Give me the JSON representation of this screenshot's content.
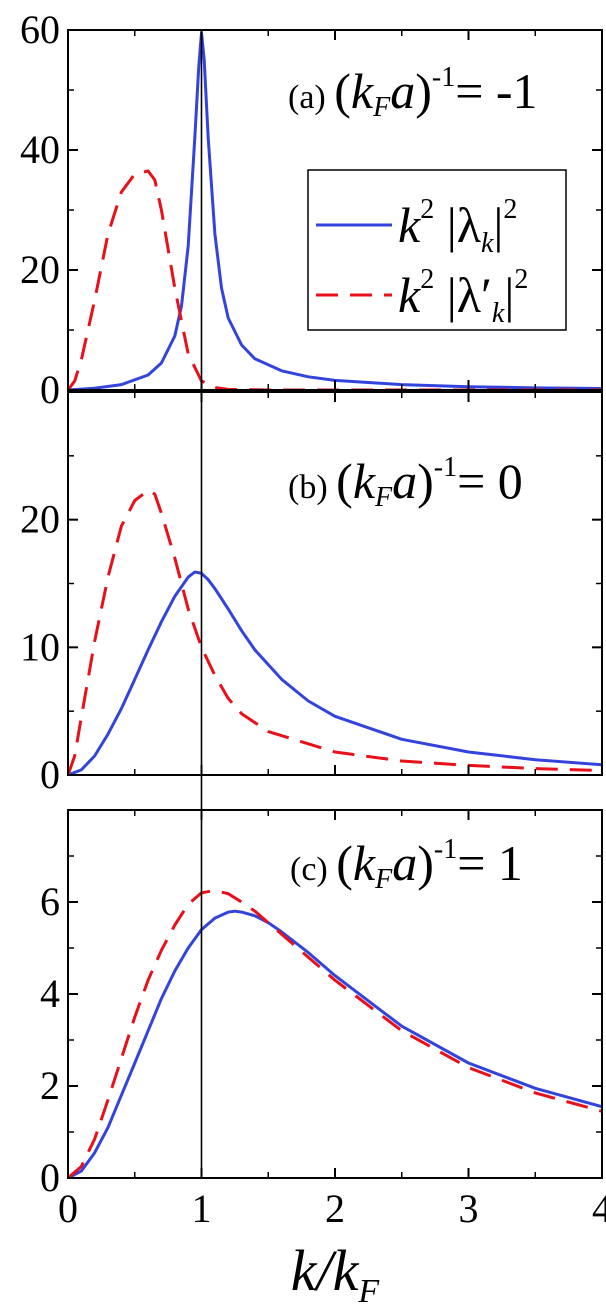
{
  "chart_data": {
    "type": "line",
    "shared_x": {
      "label": "k/k_F",
      "range": [
        0,
        4
      ],
      "ticks": [
        "0",
        "1",
        "2",
        "3",
        "4"
      ]
    },
    "reference_line_x": 1,
    "legend": {
      "placement": "top-right of panel (a)",
      "entries": [
        {
          "series": "k2_lambda",
          "base": "k",
          "sup": "2",
          "body": "|λ",
          "sub": "k",
          "tail": "|",
          "tail_sup": "2"
        },
        {
          "series": "k2_lambda_prime",
          "base": "k",
          "sup": "2",
          "body": "|λ′",
          "sub": "k",
          "tail": "|",
          "tail_sup": "2"
        }
      ]
    },
    "series_styles": {
      "k2_lambda": {
        "color": "#3344dd",
        "dash": "solid"
      },
      "k2_lambda_prime": {
        "color": "#e8101a",
        "dash": "dashed"
      }
    },
    "panels": [
      {
        "id": "a",
        "label_prefix": "(a)",
        "label_value": "-1",
        "ylim": [
          0,
          60
        ],
        "yticks": [
          "0",
          "20",
          "40",
          "60"
        ],
        "series": [
          {
            "key": "k2_lambda",
            "x": [
              0,
              0.2,
              0.4,
              0.6,
              0.7,
              0.8,
              0.85,
              0.9,
              0.95,
              0.98,
              1.0,
              1.02,
              1.05,
              1.1,
              1.15,
              1.2,
              1.3,
              1.4,
              1.6,
              1.8,
              2.0,
              2.5,
              3.0,
              3.5,
              4.0
            ],
            "y": [
              0,
              0.3,
              0.9,
              2.5,
              4.5,
              9,
              14,
              24,
              42,
              54,
              59.5,
              55,
              42,
              26,
              17,
              12,
              7.5,
              5.2,
              3.2,
              2.2,
              1.6,
              0.9,
              0.55,
              0.35,
              0.25
            ]
          },
          {
            "key": "k2_lambda_prime",
            "x": [
              0,
              0.05,
              0.1,
              0.2,
              0.3,
              0.4,
              0.5,
              0.6,
              0.65,
              0.7,
              0.8,
              0.9,
              1.0,
              1.1,
              1.2,
              1.5,
              2.0,
              3.0,
              4.0
            ],
            "y": [
              0,
              1.5,
              5,
              15,
              26,
              33,
              36,
              36.5,
              35,
              30,
              17,
              6,
              1.5,
              0.4,
              0.1,
              0,
              0,
              0,
              0
            ]
          }
        ]
      },
      {
        "id": "b",
        "label_prefix": "(b)",
        "label_value": "0",
        "ylim": [
          0,
          30
        ],
        "yticks": [
          "0",
          "10",
          "20"
        ],
        "series": [
          {
            "key": "k2_lambda",
            "x": [
              0,
              0.1,
              0.2,
              0.3,
              0.4,
              0.5,
              0.6,
              0.7,
              0.8,
              0.9,
              0.95,
              1.0,
              1.05,
              1.1,
              1.2,
              1.3,
              1.4,
              1.6,
              1.8,
              2.0,
              2.5,
              3.0,
              3.5,
              4.0
            ],
            "y": [
              0,
              0.4,
              1.5,
              3.2,
              5.2,
              7.5,
              9.8,
              12,
              14,
              15.5,
              15.9,
              15.8,
              15.3,
              14.6,
              13,
              11.3,
              9.8,
              7.5,
              5.8,
              4.6,
              2.8,
              1.8,
              1.2,
              0.8
            ]
          },
          {
            "key": "k2_lambda_prime",
            "x": [
              0,
              0.05,
              0.1,
              0.2,
              0.3,
              0.4,
              0.5,
              0.6,
              0.65,
              0.7,
              0.8,
              0.9,
              1.0,
              1.1,
              1.2,
              1.3,
              1.5,
              2.0,
              2.5,
              3.0,
              3.5,
              4.0
            ],
            "y": [
              0,
              1.5,
              4.5,
              10.5,
              15.5,
              19.5,
              21.5,
              22.3,
              22,
              20.5,
              17,
              13,
              10,
              7.8,
              6,
              4.8,
              3.4,
              1.8,
              1.1,
              0.75,
              0.5,
              0.35
            ]
          }
        ]
      },
      {
        "id": "c",
        "label_prefix": "(c)",
        "label_value": "1",
        "ylim": [
          0,
          8
        ],
        "yticks": [
          "0",
          "2",
          "4",
          "6"
        ],
        "series": [
          {
            "key": "k2_lambda",
            "x": [
              0,
              0.1,
              0.2,
              0.3,
              0.4,
              0.5,
              0.6,
              0.7,
              0.8,
              0.9,
              1.0,
              1.1,
              1.2,
              1.25,
              1.3,
              1.4,
              1.5,
              1.6,
              1.8,
              2.0,
              2.5,
              3.0,
              3.5,
              4.0
            ],
            "y": [
              0,
              0.15,
              0.55,
              1.1,
              1.8,
              2.5,
              3.2,
              3.9,
              4.5,
              5.0,
              5.4,
              5.65,
              5.78,
              5.8,
              5.78,
              5.7,
              5.55,
              5.35,
              4.9,
              4.4,
              3.3,
              2.5,
              1.95,
              1.55
            ]
          },
          {
            "key": "k2_lambda_prime",
            "x": [
              0,
              0.1,
              0.2,
              0.3,
              0.4,
              0.5,
              0.6,
              0.7,
              0.8,
              0.9,
              1.0,
              1.1,
              1.2,
              1.3,
              1.4,
              1.5,
              1.6,
              1.8,
              2.0,
              2.5,
              3.0,
              3.5,
              4.0
            ],
            "y": [
              0,
              0.25,
              0.85,
              1.7,
              2.6,
              3.5,
              4.3,
              4.95,
              5.5,
              5.95,
              6.2,
              6.25,
              6.18,
              6.0,
              5.8,
              5.55,
              5.3,
              4.8,
              4.3,
              3.2,
              2.4,
              1.85,
              1.45
            ]
          }
        ]
      }
    ]
  }
}
